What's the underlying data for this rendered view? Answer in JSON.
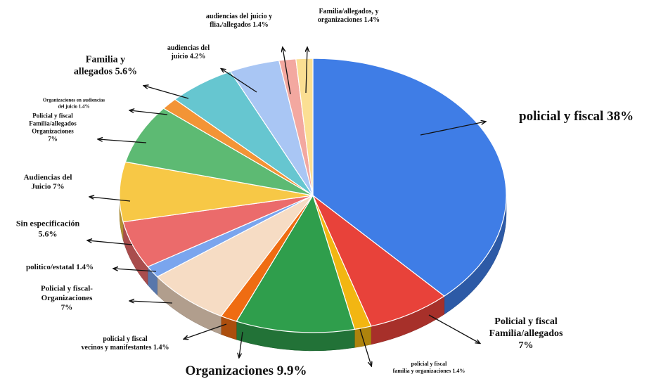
{
  "chart_data": {
    "type": "pie",
    "style": "3d",
    "title": "",
    "slices": [
      {
        "label": "policial y fiscal",
        "value": 38,
        "display": "policial y fiscal 38%",
        "color": "#3f7de6"
      },
      {
        "label": "Policial y fiscal Familia/allegados",
        "value": 7,
        "display": "Policial y fiscal Familia/allegados 7%",
        "color": "#e8423a"
      },
      {
        "label": "policial y fiscal familia y organizaciones",
        "value": 1.4,
        "display": "policial y fiscal familia y organizaciones 1.4%",
        "color": "#f2b612"
      },
      {
        "label": "Organizaciones",
        "value": 9.9,
        "display": "Organizaciones 9.9%",
        "color": "#2f9e4c"
      },
      {
        "label": "policial y fiscal vecinos y manifestantes",
        "value": 1.4,
        "display": "policial y fiscal vecinos y manifestantes 1.4%",
        "color": "#ef6c12"
      },
      {
        "label": "Policial y fiscal-Organizaciones",
        "value": 7,
        "display": "Policial y fiscal-Organizaciones 7%",
        "color": "#f6dcc4"
      },
      {
        "label": "politico/estatal",
        "value": 1.4,
        "display": "politico/estatal 1.4%",
        "color": "#7aa5ee"
      },
      {
        "label": "Sin especificación",
        "value": 5.6,
        "display": "Sin especificación 5.6%",
        "color": "#eb6b6b"
      },
      {
        "label": "Audiencias del Juicio",
        "value": 7,
        "display": "Audiencias del Juicio 7%",
        "color": "#f7c846"
      },
      {
        "label": "Policial y fiscal Familia/allegados Organizaciones",
        "value": 7,
        "display": "Policial y fiscal Familia/allegados Organizaciones 7%",
        "color": "#5dba73"
      },
      {
        "label": "Organizaciones en audiencias del juicio",
        "value": 1.4,
        "display": "Organizaciones en audiencias del juicio 1.4%",
        "color": "#f39436"
      },
      {
        "label": "Familia y allegados",
        "value": 5.6,
        "display": "Familia y allegados 5.6%",
        "color": "#66c6d0"
      },
      {
        "label": "audiencias del juicio",
        "value": 4.2,
        "display": "audiencias del juicio 4.2%",
        "color": "#a9c6f4"
      },
      {
        "label": "audiencias del juicio y flia./allegados",
        "value": 1.4,
        "display": "audiencias del juicio y flia./allegados 1.4%",
        "color": "#f3a8a0"
      },
      {
        "label": "Familia/allegados, y organizaciones",
        "value": 1.4,
        "display": "Familia/allegados, y organizaciones 1.4%",
        "color": "#fbdf93"
      }
    ],
    "labels": [
      {
        "lines": [
          "policial y fiscal 38%"
        ],
        "size": 19
      },
      {
        "lines": [
          "Policial y fiscal",
          "Familia/allegados",
          "7%"
        ],
        "size": 14
      },
      {
        "lines": [
          "policial y fiscal",
          "familia y organizaciones 1.4%"
        ],
        "size": 8
      },
      {
        "lines": [
          "Organizaciones 9.9%"
        ],
        "size": 19
      },
      {
        "lines": [
          "policial y fiscal",
          "vecinos y manifestantes 1.4%"
        ],
        "size": 10
      },
      {
        "lines": [
          "Policial y fiscal-",
          "Organizaciones",
          "7%"
        ],
        "size": 11
      },
      {
        "lines": [
          "politico/estatal 1.4%"
        ],
        "size": 11
      },
      {
        "lines": [
          "Sin especificación",
          "5.6%"
        ],
        "size": 12
      },
      {
        "lines": [
          "Audiencias del",
          "Juicio 7%"
        ],
        "size": 11
      },
      {
        "lines": [
          "Policial y fiscal",
          "Familia/allegados",
          "Organizaciones",
          "7%"
        ],
        "size": 9
      },
      {
        "lines": [
          "Organizaciones en audiencias",
          "del juicio 1.4%"
        ],
        "size": 7
      },
      {
        "lines": [
          "Familia y",
          "allegados 5.6%"
        ],
        "size": 14
      },
      {
        "lines": [
          "audiencias del",
          "juicio 4.2%"
        ],
        "size": 10
      },
      {
        "lines": [
          "audiencias del juicio y",
          "flia./allegados 1.4%"
        ],
        "size": 10
      },
      {
        "lines": [
          "Familia/allegados, y",
          "organizaciones 1.4%"
        ],
        "size": 10
      }
    ]
  }
}
